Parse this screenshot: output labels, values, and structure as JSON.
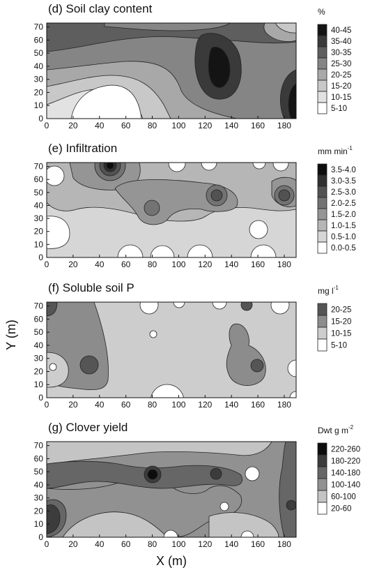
{
  "xlabel": "X (m)",
  "ylabel": "Y (m)",
  "chart_data": [
    {
      "type": "heatmap",
      "title": "(d) Soil clay content",
      "unit": "%",
      "x_ticks": [
        "0",
        "20",
        "40",
        "60",
        "80",
        "100",
        "120",
        "140",
        "160",
        "180"
      ],
      "y_ticks": [
        "0",
        "10",
        "20",
        "30",
        "40",
        "50",
        "60",
        "70"
      ],
      "xlim": [
        0,
        189
      ],
      "ylim": [
        0,
        73
      ],
      "legend": [
        {
          "label": "40-45",
          "color": "#141414"
        },
        {
          "label": "35-40",
          "color": "#3a3a3a"
        },
        {
          "label": "30-35",
          "color": "#5e5e5e"
        },
        {
          "label": "25-30",
          "color": "#858585"
        },
        {
          "label": "20-25",
          "color": "#a8a8a8"
        },
        {
          "label": "15-20",
          "color": "#c8c8c8"
        },
        {
          "label": "10-15",
          "color": "#e2e2e2"
        },
        {
          "label": "5-10",
          "color": "#ffffff"
        }
      ]
    },
    {
      "type": "heatmap",
      "title": "(e) Infiltration",
      "unit": "mm min",
      "unit_sup": "-1",
      "x_ticks": [
        "0",
        "20",
        "40",
        "60",
        "80",
        "100",
        "120",
        "140",
        "160",
        "180"
      ],
      "y_ticks": [
        "0",
        "10",
        "20",
        "30",
        "40",
        "50",
        "60",
        "70"
      ],
      "xlim": [
        0,
        189
      ],
      "ylim": [
        0,
        73
      ],
      "legend": [
        {
          "label": "3.5-4.0",
          "color": "#0d0d0d"
        },
        {
          "label": "3.0-3.5",
          "color": "#303030"
        },
        {
          "label": "2.5-3.0",
          "color": "#525252"
        },
        {
          "label": "2.0-2.5",
          "color": "#737373"
        },
        {
          "label": "1.5-2.0",
          "color": "#959595"
        },
        {
          "label": "1.0-1.5",
          "color": "#b6b6b6"
        },
        {
          "label": "0.5-1.0",
          "color": "#d6d6d6"
        },
        {
          "label": "0.0-0.5",
          "color": "#ffffff"
        }
      ]
    },
    {
      "type": "heatmap",
      "title": "(f) Soluble soil P",
      "unit": "mg l",
      "unit_sup": "-1",
      "x_ticks": [
        "0",
        "20",
        "40",
        "60",
        "80",
        "100",
        "120",
        "140",
        "160",
        "180"
      ],
      "y_ticks": [
        "0",
        "10",
        "20",
        "30",
        "40",
        "50",
        "60",
        "70"
      ],
      "xlim": [
        0,
        189
      ],
      "ylim": [
        0,
        73
      ],
      "legend": [
        {
          "label": "20-25",
          "color": "#555555"
        },
        {
          "label": "15-20",
          "color": "#8c8c8c"
        },
        {
          "label": "10-15",
          "color": "#cdcdcd"
        },
        {
          "label": "5-10",
          "color": "#ffffff"
        }
      ]
    },
    {
      "type": "heatmap",
      "title": "(g) Clover yield",
      "unit": "Dwt g m",
      "unit_sup": "-2",
      "x_ticks": [
        "0",
        "20",
        "40",
        "60",
        "80",
        "100",
        "120",
        "140",
        "160",
        "180"
      ],
      "y_ticks": [
        "0",
        "10",
        "20",
        "30",
        "40",
        "50",
        "60",
        "70"
      ],
      "xlim": [
        0,
        189
      ],
      "ylim": [
        0,
        73
      ],
      "legend": [
        {
          "label": "220-260",
          "color": "#0d0d0d"
        },
        {
          "label": "180-220",
          "color": "#3c3c3c"
        },
        {
          "label": "140-180",
          "color": "#666666"
        },
        {
          "label": "100-140",
          "color": "#919191"
        },
        {
          "label": "60-100",
          "color": "#c4c4c4"
        },
        {
          "label": "20-60",
          "color": "#ffffff"
        }
      ]
    }
  ]
}
